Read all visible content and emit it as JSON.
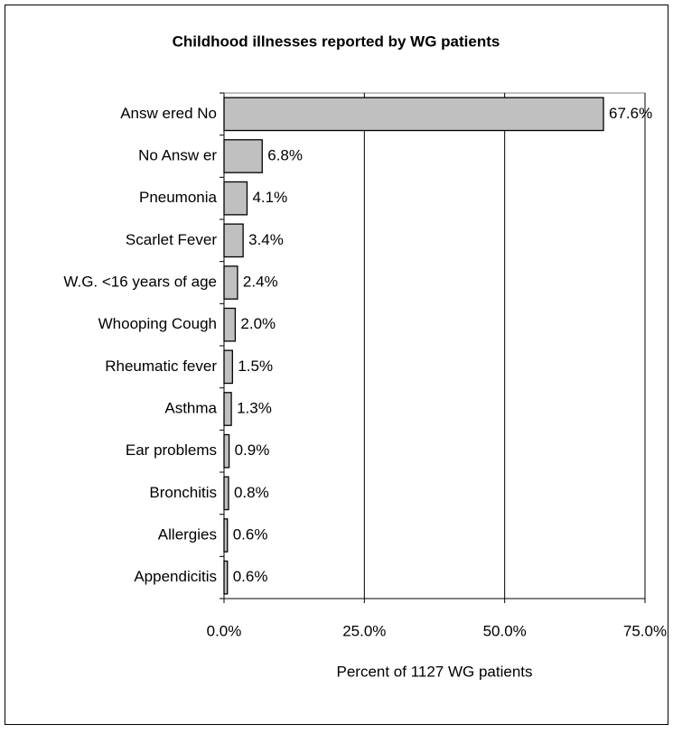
{
  "chart_data": {
    "type": "barh",
    "title": "Childhood illnesses reported by WG patients",
    "x_label": "Percent of 1127  WG patients",
    "categories": [
      "Answ ered No",
      "No Answ er",
      "Pneumonia",
      "Scarlet Fever",
      "W.G. <16 years of age",
      "Whooping Cough",
      "Rheumatic fever",
      "Asthma",
      "Ear problems",
      "Bronchitis",
      "Allergies",
      "Appendicitis"
    ],
    "values": [
      67.6,
      6.8,
      4.1,
      3.4,
      2.4,
      2.0,
      1.5,
      1.3,
      0.9,
      0.8,
      0.6,
      0.6
    ],
    "value_labels": [
      "67.6%",
      "6.8%",
      "4.1%",
      "3.4%",
      "2.4%",
      "2.0%",
      "1.5%",
      "1.3%",
      "0.9%",
      "0.8%",
      "0.6%",
      "0.6%"
    ],
    "color": "#c0c0c0",
    "xlim": [
      0,
      75
    ],
    "xticks": [
      {
        "value": 0,
        "label": "0.0%"
      },
      {
        "value": 25,
        "label": "25.0%"
      },
      {
        "value": 50,
        "label": "50.0%"
      },
      {
        "value": 75,
        "label": "75.0%"
      }
    ],
    "grid": true
  }
}
